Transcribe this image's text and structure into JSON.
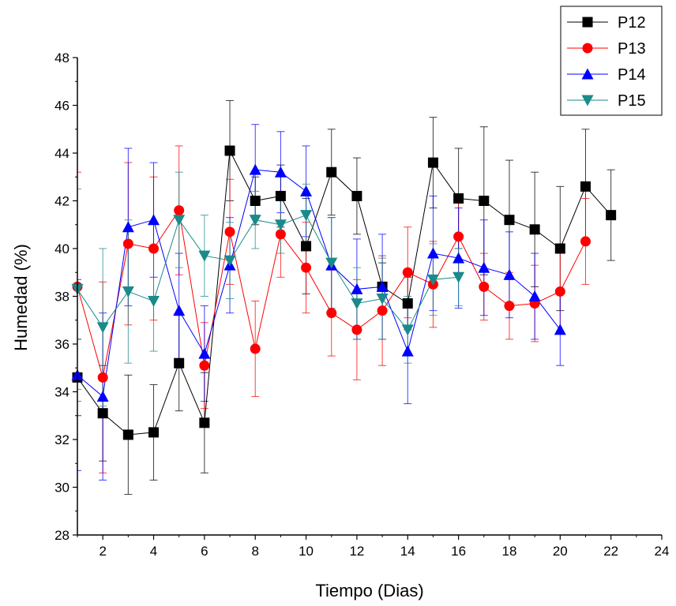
{
  "chart_data": {
    "type": "line",
    "xlabel": "Tiempo (Dias)",
    "ylabel": "Humedad (%)",
    "xlim": [
      1,
      24
    ],
    "ylim": [
      28,
      48
    ],
    "xticks": [
      2,
      4,
      6,
      8,
      10,
      12,
      14,
      16,
      18,
      20,
      22,
      24
    ],
    "yticks": [
      28,
      30,
      32,
      34,
      36,
      38,
      40,
      42,
      44,
      46,
      48
    ],
    "legend_position": "top-right",
    "error_bars": true,
    "series": [
      {
        "name": "P12",
        "color": "#000000",
        "marker": "square",
        "x": [
          1,
          2,
          3,
          4,
          5,
          6,
          7,
          8,
          9,
          10,
          11,
          12,
          13,
          14,
          15,
          16,
          17,
          18,
          19,
          20,
          21,
          22
        ],
        "y": [
          34.6,
          33.1,
          32.2,
          32.3,
          35.2,
          32.7,
          44.1,
          42.0,
          42.2,
          40.1,
          43.2,
          42.2,
          38.4,
          37.7,
          43.6,
          42.1,
          42.0,
          41.2,
          40.8,
          40.0,
          42.6,
          41.4
        ],
        "err": [
          1.6,
          2.0,
          2.5,
          2.0,
          2.0,
          2.1,
          2.1,
          1.0,
          1.3,
          2.0,
          1.8,
          1.6,
          1.0,
          1.1,
          1.9,
          2.1,
          3.1,
          2.5,
          2.4,
          2.6,
          2.4,
          1.9
        ]
      },
      {
        "name": "P13",
        "color": "#ff0000",
        "marker": "circle",
        "x": [
          1,
          2,
          3,
          4,
          5,
          6,
          7,
          8,
          9,
          10,
          11,
          12,
          13,
          14,
          15,
          16,
          17,
          18,
          19,
          20,
          21
        ],
        "y": [
          38.4,
          34.6,
          40.2,
          40.0,
          41.6,
          35.1,
          40.7,
          35.8,
          40.6,
          39.2,
          37.3,
          36.6,
          37.4,
          39.0,
          38.5,
          40.5,
          38.4,
          37.6,
          37.7,
          38.2,
          40.3
        ],
        "err": [
          4.8,
          4.0,
          3.4,
          3.0,
          2.7,
          1.8,
          2.2,
          2.0,
          1.8,
          1.9,
          1.8,
          2.1,
          2.3,
          1.9,
          1.8,
          1.6,
          1.4,
          1.4,
          1.6,
          1.7,
          1.8
        ]
      },
      {
        "name": "P14",
        "color": "#0000ff",
        "marker": "triangle-up",
        "x": [
          1,
          2,
          3,
          4,
          5,
          6,
          7,
          8,
          9,
          10,
          11,
          12,
          13,
          14,
          15,
          16,
          17,
          18,
          19,
          20
        ],
        "y": [
          34.7,
          33.8,
          40.9,
          41.2,
          37.4,
          35.6,
          39.3,
          43.3,
          43.2,
          42.4,
          39.3,
          38.3,
          38.4,
          35.7,
          39.8,
          39.6,
          39.2,
          38.9,
          38.0,
          36.6
        ],
        "err": [
          4.0,
          3.5,
          3.3,
          2.4,
          2.4,
          2.0,
          2.0,
          1.9,
          1.7,
          1.9,
          2.0,
          2.1,
          2.2,
          2.2,
          2.4,
          2.1,
          2.0,
          1.8,
          1.8,
          1.5
        ]
      },
      {
        "name": "P15",
        "color": "#1a8a8a",
        "marker": "triangle-down",
        "x": [
          1,
          2,
          3,
          4,
          5,
          6,
          7,
          8,
          9,
          10,
          11,
          12,
          13,
          14,
          15,
          16
        ],
        "y": [
          38.3,
          36.7,
          38.2,
          37.8,
          41.2,
          39.7,
          39.5,
          41.2,
          41.0,
          41.4,
          39.4,
          37.7,
          37.9,
          36.6,
          38.7,
          38.8
        ],
        "err": [
          4.2,
          3.3,
          3.0,
          2.1,
          2.0,
          1.7,
          1.6,
          1.2,
          1.2,
          1.3,
          1.9,
          1.5,
          1.7,
          1.4,
          1.5,
          1.2
        ]
      }
    ]
  }
}
